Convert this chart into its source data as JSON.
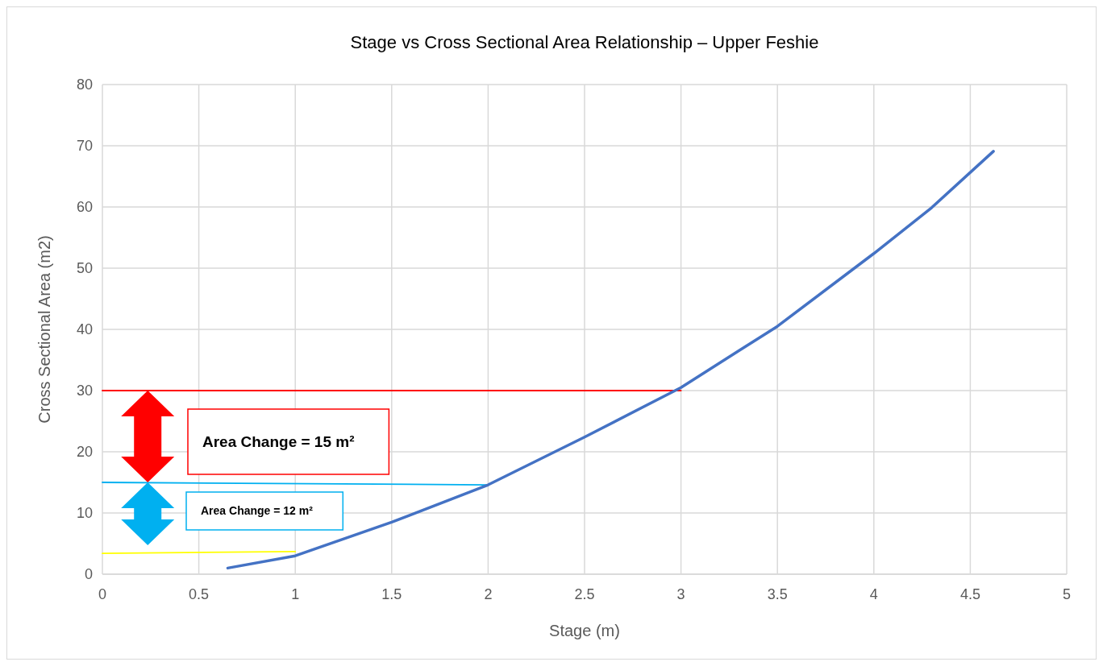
{
  "chart_data": {
    "type": "line",
    "title": "Stage vs Cross Sectional Area Relationship – Upper Feshie",
    "xlabel": "Stage (m)",
    "ylabel": "Cross Sectional Area (m2)",
    "xlim": [
      0,
      5
    ],
    "xticks": [
      0,
      0.5,
      1,
      1.5,
      2,
      2.5,
      3,
      3.5,
      4,
      4.5,
      5
    ],
    "ylim": [
      0,
      80
    ],
    "yticks": [
      0,
      10,
      20,
      30,
      40,
      50,
      60,
      70,
      80
    ],
    "grid": true,
    "marker": "none",
    "line_style": "solid",
    "series": [
      {
        "color": "#ff0000",
        "x": [
          0,
          3
        ],
        "values": [
          30,
          30
        ]
      },
      {
        "color": "#00b0f0",
        "x": [
          0,
          2
        ],
        "values": [
          15,
          14.6
        ]
      },
      {
        "color": "#ffff00",
        "x": [
          0,
          1
        ],
        "values": [
          3.4,
          3.7
        ]
      },
      {
        "color": "#4472c4",
        "x": [
          0.65,
          1,
          1.5,
          2,
          2.5,
          3,
          3.3,
          3.5,
          4,
          4.3,
          4.62
        ],
        "values": [
          1,
          3,
          8.5,
          14.6,
          22.4,
          30.5,
          36.5,
          40.5,
          52.4,
          59.9,
          69.1
        ]
      }
    ],
    "annotations": [
      "Area Change = 15 m²",
      "Area Change = 12 m²"
    ]
  }
}
